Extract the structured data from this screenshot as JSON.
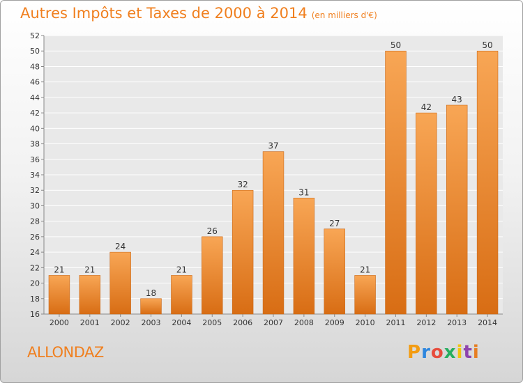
{
  "header": {
    "title": "Autres Impôts et Taxes de 2000 à 2014",
    "unit": "(en milliers d'€)"
  },
  "footer": {
    "place": "ALLONDAZ",
    "logo_letters": [
      "P",
      "r",
      "o",
      "x",
      "i",
      "t",
      "i"
    ],
    "logo_colors": [
      "#f39c12",
      "#2e86de",
      "#e74c3c",
      "#27ae60",
      "#f1c40f",
      "#8e44ad",
      "#e67e22"
    ]
  },
  "chart_data": {
    "type": "bar",
    "title": "Autres Impôts et Taxes de 2000 à 2014",
    "subtitle": "(en milliers d'€)",
    "categories": [
      "2000",
      "2001",
      "2002",
      "2003",
      "2004",
      "2005",
      "2006",
      "2007",
      "2008",
      "2009",
      "2010",
      "2011",
      "2012",
      "2013",
      "2014"
    ],
    "values": [
      21,
      21,
      24,
      18,
      21,
      26,
      32,
      37,
      31,
      27,
      21,
      50,
      42,
      43,
      50
    ],
    "ylim": [
      16,
      52
    ],
    "yticks": [
      16,
      18,
      20,
      22,
      24,
      26,
      28,
      30,
      32,
      34,
      36,
      38,
      40,
      42,
      44,
      46,
      48,
      50,
      52
    ],
    "grid": true,
    "bar_color": "#f0842a",
    "bar_color_light": "#f8a655",
    "bar_color_dark": "#d86d14"
  }
}
